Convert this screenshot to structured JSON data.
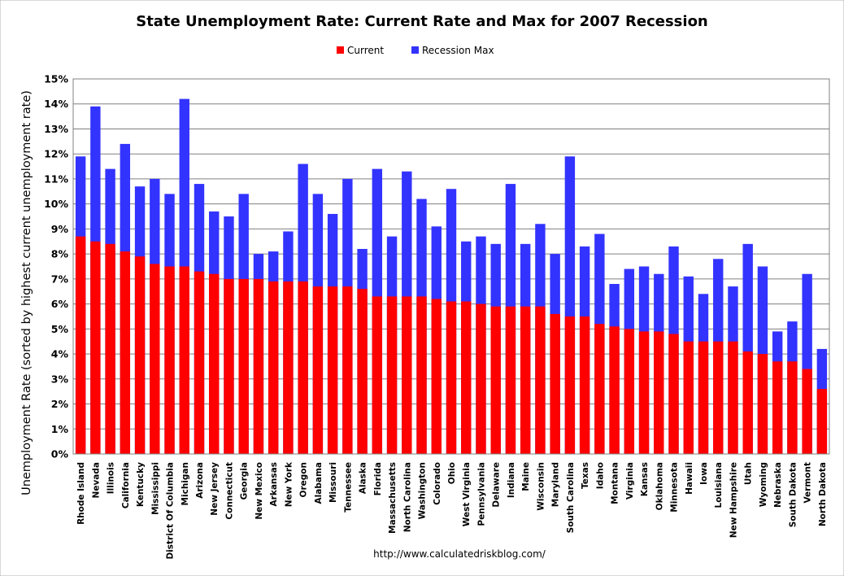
{
  "chart_data": {
    "type": "bar",
    "title": "State Unemployment Rate: Current Rate and Max for 2007 Recession",
    "ylabel": "Unemployment Rate (sorted by highest current unemployment rate)",
    "xlabel": "",
    "ylim": [
      0,
      15
    ],
    "y_ticks": [
      "0%",
      "1%",
      "2%",
      "3%",
      "4%",
      "5%",
      "6%",
      "7%",
      "8%",
      "9%",
      "10%",
      "11%",
      "12%",
      "13%",
      "14%",
      "15%"
    ],
    "grid": true,
    "legend_position": "top-center",
    "source": "http://www.calculatedriskblog.com/",
    "categories": [
      "Rhode Island",
      "Nevada",
      "Illinois",
      "California",
      "Kentucky",
      "Mississippi",
      "District Of Columbia",
      "Michigan",
      "Arizona",
      "New Jersey",
      "Connecticut",
      "Georgia",
      "New Mexico",
      "Arkansas",
      "New York",
      "Oregon",
      "Alabama",
      "Missouri",
      "Tennessee",
      "Alaska",
      "Florida",
      "Massachusetts",
      "North Carolina",
      "Washington",
      "Colorado",
      "Ohio",
      "West Virginia",
      "Pennsylvania",
      "Delaware",
      "Indiana",
      "Maine",
      "Wisconsin",
      "Maryland",
      "South Carolina",
      "Texas",
      "Idaho",
      "Montana",
      "Virginia",
      "Kansas",
      "Oklahoma",
      "Minnesota",
      "Hawaii",
      "Iowa",
      "Louisiana",
      "New Hampshire",
      "Utah",
      "Wyoming",
      "Nebraska",
      "South Dakota",
      "Vermont",
      "North Dakota"
    ],
    "series": [
      {
        "name": "Current",
        "color": "#ff0000",
        "values": [
          8.7,
          8.5,
          8.4,
          8.1,
          7.9,
          7.6,
          7.5,
          7.5,
          7.3,
          7.2,
          7.0,
          7.0,
          7.0,
          6.9,
          6.9,
          6.9,
          6.7,
          6.7,
          6.7,
          6.6,
          6.3,
          6.3,
          6.3,
          6.3,
          6.2,
          6.1,
          6.1,
          6.0,
          5.9,
          5.9,
          5.9,
          5.9,
          5.6,
          5.5,
          5.5,
          5.2,
          5.1,
          5.0,
          4.9,
          4.9,
          4.8,
          4.5,
          4.5,
          4.5,
          4.5,
          4.1,
          4.0,
          3.7,
          3.7,
          3.4,
          2.6
        ]
      },
      {
        "name": "Recession Max",
        "color": "#3333ff",
        "values": [
          11.9,
          13.9,
          11.4,
          12.4,
          10.7,
          11.0,
          10.4,
          14.2,
          10.8,
          9.7,
          9.5,
          10.4,
          8.0,
          8.1,
          8.9,
          11.6,
          10.4,
          9.6,
          11.0,
          8.2,
          11.4,
          8.7,
          11.3,
          10.2,
          9.1,
          10.6,
          8.5,
          8.7,
          8.4,
          10.8,
          8.4,
          9.2,
          8.0,
          11.9,
          8.3,
          8.8,
          6.8,
          7.4,
          7.5,
          7.2,
          8.3,
          7.1,
          6.4,
          7.8,
          6.7,
          8.4,
          7.5,
          4.9,
          5.3,
          7.2,
          4.2
        ]
      }
    ]
  }
}
